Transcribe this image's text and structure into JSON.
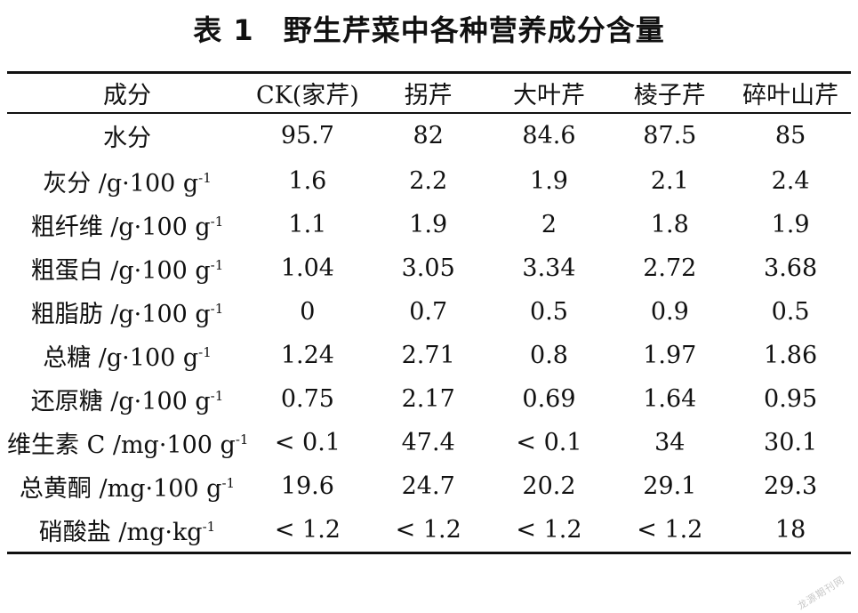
{
  "title": "表 1　野生芹菜中各种营养成分含量",
  "table": {
    "headers": [
      "成分",
      "CK(家芹)",
      "拐芹",
      "大叶芹",
      "棱子芹",
      "碎叶山芹"
    ],
    "rows": [
      {
        "name": "水分",
        "unit": "",
        "exp": "",
        "values": [
          "95.7",
          "82",
          "84.6",
          "87.5",
          "85"
        ]
      },
      {
        "name": "灰分",
        "unit": "/g·100 g",
        "exp": "-1",
        "values": [
          "1.6",
          "2.2",
          "1.9",
          "2.1",
          "2.4"
        ]
      },
      {
        "name": "粗纤维",
        "unit": "/g·100 g",
        "exp": "-1",
        "values": [
          "1.1",
          "1.9",
          "2",
          "1.8",
          "1.9"
        ]
      },
      {
        "name": "粗蛋白",
        "unit": "/g·100 g",
        "exp": "-1",
        "values": [
          "1.04",
          "3.05",
          "3.34",
          "2.72",
          "3.68"
        ]
      },
      {
        "name": "粗脂肪",
        "unit": "/g·100 g",
        "exp": "-1",
        "values": [
          "0",
          "0.7",
          "0.5",
          "0.9",
          "0.5"
        ]
      },
      {
        "name": "总糖",
        "unit": "/g·100 g",
        "exp": "-1",
        "values": [
          "1.24",
          "2.71",
          "0.8",
          "1.97",
          "1.86"
        ]
      },
      {
        "name": "还原糖",
        "unit": "/g·100 g",
        "exp": "-1",
        "values": [
          "0.75",
          "2.17",
          "0.69",
          "1.64",
          "0.95"
        ]
      },
      {
        "name": "维生素 C",
        "unit": "/mg·100 g",
        "exp": "-1",
        "values": [
          "< 0.1",
          "47.4",
          "< 0.1",
          "34",
          "30.1"
        ]
      },
      {
        "name": "总黄酮",
        "unit": "/mg·100 g",
        "exp": "-1",
        "values": [
          "19.6",
          "24.7",
          "20.2",
          "29.1",
          "29.3"
        ]
      },
      {
        "name": "硝酸盐",
        "unit": "/mg·kg",
        "exp": "-1",
        "values": [
          "< 1.2",
          "< 1.2",
          "< 1.2",
          "< 1.2",
          "18"
        ]
      }
    ]
  }
}
